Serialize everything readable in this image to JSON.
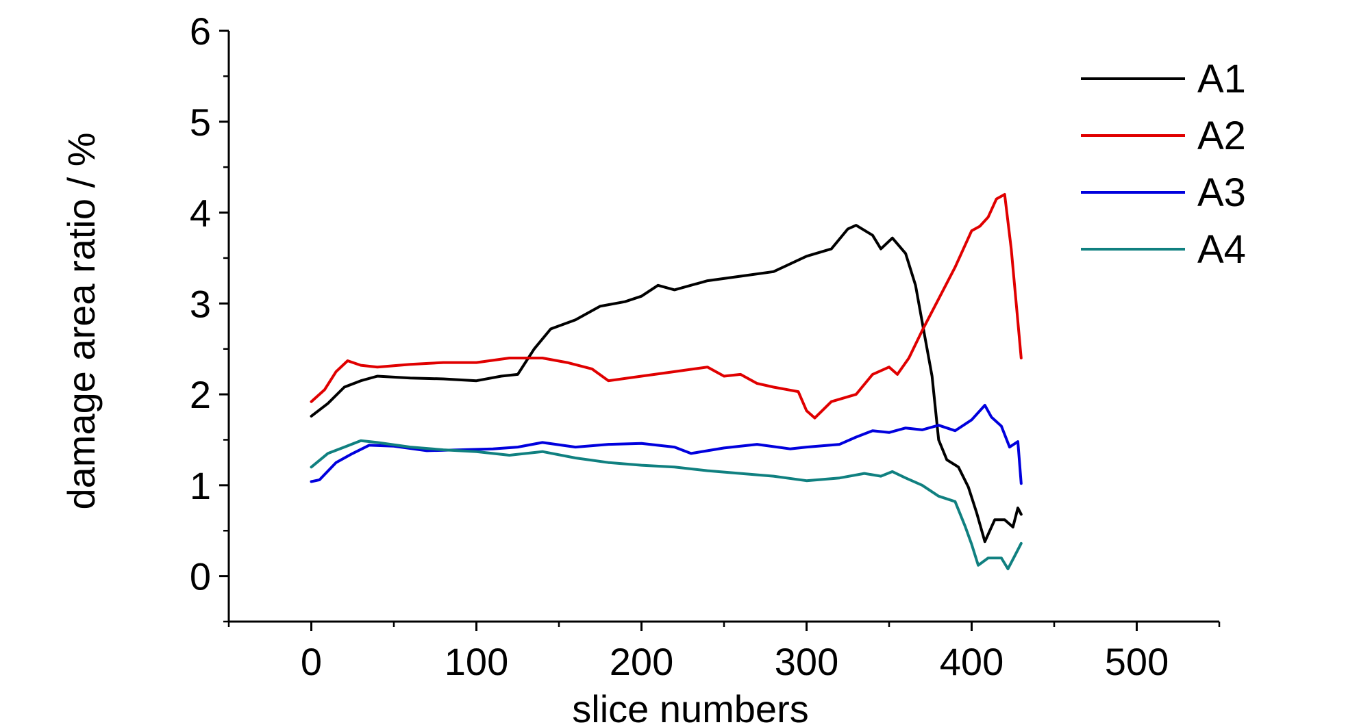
{
  "chart_data": {
    "type": "line",
    "title": "",
    "xlabel": "slice numbers",
    "ylabel": "damage area ratio / %",
    "xlim": [
      -50,
      550
    ],
    "ylim": [
      -0.5,
      6
    ],
    "xticks": [
      0,
      100,
      200,
      300,
      400,
      500
    ],
    "yticks": [
      0,
      1,
      2,
      3,
      4,
      5,
      6
    ],
    "grid": false,
    "legend_position": "top-right",
    "series": [
      {
        "name": "A1",
        "color": "#000000",
        "points": [
          [
            0,
            1.76
          ],
          [
            10,
            1.9
          ],
          [
            20,
            2.08
          ],
          [
            30,
            2.15
          ],
          [
            40,
            2.2
          ],
          [
            60,
            2.18
          ],
          [
            80,
            2.17
          ],
          [
            100,
            2.15
          ],
          [
            115,
            2.2
          ],
          [
            125,
            2.22
          ],
          [
            135,
            2.5
          ],
          [
            145,
            2.72
          ],
          [
            160,
            2.82
          ],
          [
            175,
            2.97
          ],
          [
            190,
            3.02
          ],
          [
            200,
            3.08
          ],
          [
            210,
            3.2
          ],
          [
            220,
            3.15
          ],
          [
            240,
            3.25
          ],
          [
            260,
            3.3
          ],
          [
            280,
            3.35
          ],
          [
            300,
            3.52
          ],
          [
            315,
            3.6
          ],
          [
            325,
            3.82
          ],
          [
            330,
            3.86
          ],
          [
            340,
            3.75
          ],
          [
            345,
            3.6
          ],
          [
            352,
            3.72
          ],
          [
            360,
            3.55
          ],
          [
            366,
            3.2
          ],
          [
            371,
            2.7
          ],
          [
            376,
            2.2
          ],
          [
            380,
            1.5
          ],
          [
            385,
            1.28
          ],
          [
            392,
            1.2
          ],
          [
            398,
            0.98
          ],
          [
            403,
            0.7
          ],
          [
            408,
            0.38
          ],
          [
            414,
            0.62
          ],
          [
            420,
            0.62
          ],
          [
            425,
            0.54
          ],
          [
            428,
            0.75
          ],
          [
            430,
            0.68
          ]
        ]
      },
      {
        "name": "A2",
        "color": "#e00000",
        "points": [
          [
            0,
            1.92
          ],
          [
            8,
            2.05
          ],
          [
            15,
            2.25
          ],
          [
            22,
            2.37
          ],
          [
            30,
            2.32
          ],
          [
            40,
            2.3
          ],
          [
            60,
            2.33
          ],
          [
            80,
            2.35
          ],
          [
            100,
            2.35
          ],
          [
            120,
            2.4
          ],
          [
            140,
            2.4
          ],
          [
            155,
            2.35
          ],
          [
            170,
            2.28
          ],
          [
            180,
            2.15
          ],
          [
            200,
            2.2
          ],
          [
            220,
            2.25
          ],
          [
            240,
            2.3
          ],
          [
            250,
            2.2
          ],
          [
            260,
            2.22
          ],
          [
            270,
            2.12
          ],
          [
            280,
            2.08
          ],
          [
            295,
            2.03
          ],
          [
            300,
            1.82
          ],
          [
            305,
            1.74
          ],
          [
            315,
            1.92
          ],
          [
            330,
            2.0
          ],
          [
            340,
            2.22
          ],
          [
            350,
            2.3
          ],
          [
            355,
            2.22
          ],
          [
            362,
            2.4
          ],
          [
            370,
            2.7
          ],
          [
            380,
            3.05
          ],
          [
            390,
            3.4
          ],
          [
            400,
            3.8
          ],
          [
            405,
            3.85
          ],
          [
            410,
            3.95
          ],
          [
            415,
            4.15
          ],
          [
            420,
            4.2
          ],
          [
            424,
            3.6
          ],
          [
            428,
            2.8
          ],
          [
            430,
            2.4
          ]
        ]
      },
      {
        "name": "A3",
        "color": "#0000dd",
        "points": [
          [
            0,
            1.04
          ],
          [
            5,
            1.06
          ],
          [
            15,
            1.25
          ],
          [
            25,
            1.35
          ],
          [
            35,
            1.44
          ],
          [
            50,
            1.43
          ],
          [
            70,
            1.38
          ],
          [
            90,
            1.39
          ],
          [
            110,
            1.4
          ],
          [
            125,
            1.42
          ],
          [
            140,
            1.47
          ],
          [
            160,
            1.42
          ],
          [
            180,
            1.45
          ],
          [
            200,
            1.46
          ],
          [
            220,
            1.42
          ],
          [
            230,
            1.35
          ],
          [
            250,
            1.41
          ],
          [
            270,
            1.45
          ],
          [
            290,
            1.4
          ],
          [
            300,
            1.42
          ],
          [
            320,
            1.45
          ],
          [
            330,
            1.53
          ],
          [
            340,
            1.6
          ],
          [
            350,
            1.58
          ],
          [
            360,
            1.63
          ],
          [
            370,
            1.61
          ],
          [
            380,
            1.66
          ],
          [
            390,
            1.6
          ],
          [
            400,
            1.72
          ],
          [
            408,
            1.88
          ],
          [
            412,
            1.75
          ],
          [
            418,
            1.65
          ],
          [
            423,
            1.42
          ],
          [
            428,
            1.48
          ],
          [
            430,
            1.02
          ]
        ]
      },
      {
        "name": "A4",
        "color": "#108080",
        "points": [
          [
            0,
            1.2
          ],
          [
            10,
            1.35
          ],
          [
            20,
            1.42
          ],
          [
            30,
            1.49
          ],
          [
            40,
            1.47
          ],
          [
            60,
            1.42
          ],
          [
            80,
            1.39
          ],
          [
            100,
            1.37
          ],
          [
            120,
            1.33
          ],
          [
            140,
            1.37
          ],
          [
            160,
            1.3
          ],
          [
            180,
            1.25
          ],
          [
            200,
            1.22
          ],
          [
            220,
            1.2
          ],
          [
            240,
            1.16
          ],
          [
            260,
            1.13
          ],
          [
            280,
            1.1
          ],
          [
            300,
            1.05
          ],
          [
            320,
            1.08
          ],
          [
            335,
            1.13
          ],
          [
            345,
            1.1
          ],
          [
            352,
            1.15
          ],
          [
            360,
            1.08
          ],
          [
            370,
            1.0
          ],
          [
            380,
            0.88
          ],
          [
            390,
            0.82
          ],
          [
            396,
            0.55
          ],
          [
            400,
            0.35
          ],
          [
            404,
            0.12
          ],
          [
            410,
            0.2
          ],
          [
            418,
            0.2
          ],
          [
            422,
            0.08
          ],
          [
            426,
            0.22
          ],
          [
            430,
            0.36
          ]
        ]
      }
    ]
  }
}
